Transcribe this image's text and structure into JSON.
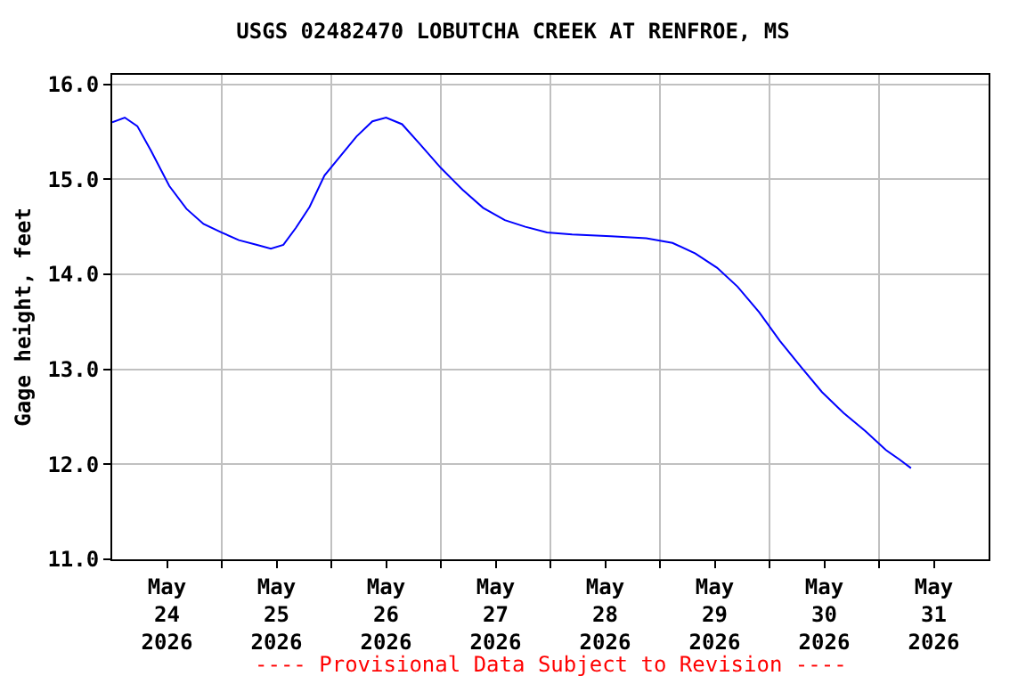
{
  "chart_data": {
    "type": "line",
    "title": "USGS 02482470 LOBUTCHA CREEK AT RENFROE, MS",
    "ylabel": "Gage height, feet",
    "annotations": [
      "---- Provisional Data Subject to Revision ----"
    ],
    "x": [
      "2026-05-24T00:00",
      "2026-05-24T02:45",
      "2026-05-24T05:30",
      "2026-05-24T08:30",
      "2026-05-24T12:30",
      "2026-05-24T16:15",
      "2026-05-24T20:00",
      "2026-05-25T00:00",
      "2026-05-25T03:45",
      "2026-05-25T07:45",
      "2026-05-25T10:45",
      "2026-05-25T13:30",
      "2026-05-25T16:15",
      "2026-05-25T19:15",
      "2026-05-25T22:30",
      "2026-05-26T02:15",
      "2026-05-26T05:30",
      "2026-05-26T09:00",
      "2026-05-26T12:00",
      "2026-05-26T15:30",
      "2026-05-26T19:15",
      "2026-05-27T00:00",
      "2026-05-27T04:45",
      "2026-05-27T09:15",
      "2026-05-27T14:00",
      "2026-05-27T18:30",
      "2026-05-27T23:15",
      "2026-05-28T04:45",
      "2026-05-28T13:15",
      "2026-05-28T21:00",
      "2026-05-29T02:45",
      "2026-05-29T07:45",
      "2026-05-29T12:30",
      "2026-05-29T17:00",
      "2026-05-29T21:45",
      "2026-05-30T02:15",
      "2026-05-30T07:00",
      "2026-05-30T11:30",
      "2026-05-30T16:15",
      "2026-05-30T21:00",
      "2026-05-31T01:30",
      "2026-05-31T04:30",
      "2026-05-31T07:00"
    ],
    "series": [
      {
        "color": "#0000ff",
        "values": [
          15.6,
          15.65,
          15.56,
          15.3,
          14.93,
          14.69,
          14.53,
          14.44,
          14.36,
          14.31,
          14.27,
          14.31,
          14.49,
          14.71,
          15.04,
          15.26,
          15.45,
          15.61,
          15.65,
          15.58,
          15.38,
          15.12,
          14.89,
          14.7,
          14.57,
          14.5,
          14.44,
          14.42,
          14.4,
          14.38,
          14.33,
          14.22,
          14.07,
          13.87,
          13.6,
          13.3,
          13.02,
          12.76,
          12.54,
          12.35,
          12.15,
          12.05,
          11.96
        ]
      }
    ],
    "xlim": [
      "2026-05-24T00:00",
      "2026-06-01T00:00"
    ],
    "xticks": [
      {
        "value": "2026-05-24T12:00",
        "label": "May\n24\n2026"
      },
      {
        "value": "2026-05-25T00:00",
        "label": null
      },
      {
        "value": "2026-05-25T12:00",
        "label": "May\n25\n2026"
      },
      {
        "value": "2026-05-26T00:00",
        "label": null
      },
      {
        "value": "2026-05-26T12:00",
        "label": "May\n26\n2026"
      },
      {
        "value": "2026-05-27T00:00",
        "label": null
      },
      {
        "value": "2026-05-27T12:00",
        "label": "May\n27\n2026"
      },
      {
        "value": "2026-05-28T00:00",
        "label": null
      },
      {
        "value": "2026-05-28T12:00",
        "label": "May\n28\n2026"
      },
      {
        "value": "2026-05-29T00:00",
        "label": null
      },
      {
        "value": "2026-05-29T12:00",
        "label": "May\n29\n2026"
      },
      {
        "value": "2026-05-30T00:00",
        "label": null
      },
      {
        "value": "2026-05-30T12:00",
        "label": "May\n30\n2026"
      },
      {
        "value": "2026-05-31T00:00",
        "label": null
      },
      {
        "value": "2026-05-31T12:00",
        "label": "May\n31\n2026"
      }
    ],
    "ylim": [
      11,
      16.1
    ],
    "yticks": [
      {
        "value": 11,
        "label": "11.0"
      },
      {
        "value": 12,
        "label": "12.0"
      },
      {
        "value": 13,
        "label": "13.0"
      },
      {
        "value": 14,
        "label": "14.0"
      },
      {
        "value": 15,
        "label": "15.0"
      },
      {
        "value": 16,
        "label": "16.0"
      }
    ],
    "grid": true,
    "legend": false
  }
}
